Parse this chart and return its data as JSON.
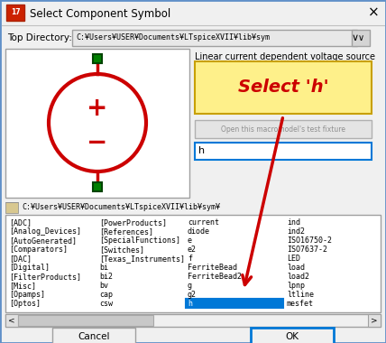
{
  "title": "Select Component Symbol",
  "top_dir_label": "Top Directory:",
  "top_dir_value": "C:¥Users¥USER¥Documents¥LTspiceXVII¥lib¥sym",
  "description": "Linear current dependent voltage source",
  "select_label": "Select ‘h’",
  "open_button": "Open this macromodel's test fixture",
  "search_text": "h",
  "path_label": "C:¥Users¥USER¥Documents¥LTspiceXVII¥lib¥sym¥",
  "col1": [
    "[ADC]",
    "[Analog_Devices]",
    "[AutoGenerated]",
    "[Comparators]",
    "[DAC]",
    "[Digital]",
    "[FilterProducts]",
    "[Misc]",
    "[Opamps]",
    "[Optos]"
  ],
  "col2": [
    "[PowerProducts]",
    "[References]",
    "[SpecialFunctions]",
    "[Switches]",
    "[Texas_Instruments]",
    "bi",
    "bi2",
    "bv",
    "cap",
    "csw"
  ],
  "col3": [
    "current",
    "diode",
    "e",
    "e2",
    "f",
    "FerriteBead",
    "FerriteBead2",
    "g",
    "g2",
    "h"
  ],
  "col4": [
    "ind",
    "ind2",
    "ISO16750-2",
    "ISO7637-2",
    "LED",
    "load",
    "load2",
    "lpnp",
    "ltline",
    "mesfet"
  ],
  "title_bar_color": "#f0f0f0",
  "bg_color": "#f0f0f0",
  "preview_bg": "#ffffff",
  "circle_color": "#cc0000",
  "arrow_color": "#cc0000",
  "highlight_color": "#0078d7",
  "callout_bg": "#fef08a",
  "callout_border": "#c8a000",
  "callout_text_color": "#cc0000",
  "ok_border": "#0078d7",
  "cancel_text": "Cancel",
  "ok_text": "OK",
  "outer_border": "#6090c8",
  "list_border": "#a0a0a0",
  "input_border": "#a0a0a0",
  "green_pin": "#008000",
  "scroll_bg": "#c8c8c8",
  "scroll_thumb": "#c8c8c8"
}
